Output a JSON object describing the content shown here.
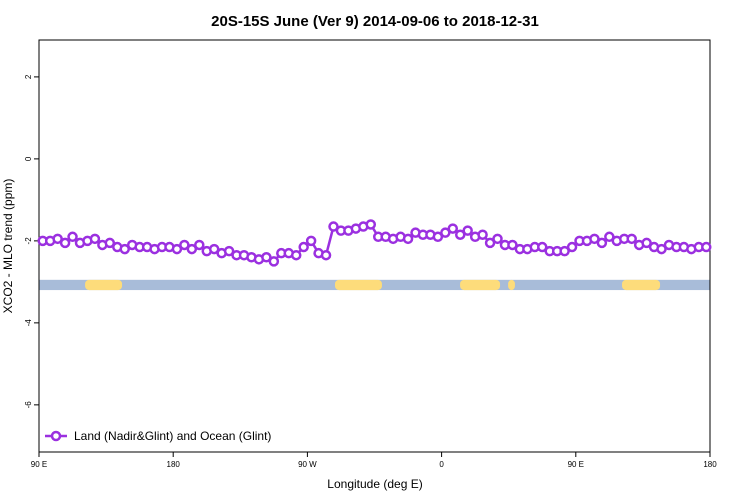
{
  "chart_data": {
    "type": "line",
    "title": "20S-15S June (Ver 9)   2014-09-06 to 2018-12-31",
    "xlabel": "Longitude (deg E)",
    "ylabel": "XCO2 - MLO trend (ppm)",
    "xlim": [
      90,
      540
    ],
    "xticks": [
      {
        "value": 90,
        "label": "90 E"
      },
      180,
      {
        "value": 270,
        "label": "90 W"
      },
      {
        "value": 360,
        "label": "0"
      },
      {
        "value": 450,
        "label": "90 E"
      },
      {
        "value": 540,
        "label": "180"
      }
    ],
    "ylim": [
      -7.15,
      2.9
    ],
    "yticks": [
      -6,
      -4,
      -2,
      0,
      2
    ],
    "legend": "lower left",
    "x": [
      92.5,
      97.5,
      102.5,
      107.5,
      112.5,
      117.5,
      122.5,
      127.5,
      132.5,
      137.5,
      142.5,
      147.5,
      152.5,
      157.5,
      162.5,
      167.5,
      172.5,
      177.5,
      182.5,
      187.5,
      192.5,
      197.5,
      202.5,
      207.5,
      212.5,
      217.5,
      222.5,
      227.5,
      232.5,
      237.5,
      242.5,
      247.5,
      252.5,
      257.5,
      262.5,
      267.5,
      272.5,
      277.5,
      282.5,
      287.5,
      292.5,
      297.5,
      302.5,
      307.5,
      312.5,
      317.5,
      322.5,
      327.5,
      332.5,
      337.5,
      342.5,
      347.5,
      352.5,
      357.5,
      362.5,
      367.5,
      372.5,
      377.5,
      382.5,
      387.5,
      392.5,
      397.5,
      402.5,
      407.5,
      412.5,
      417.5,
      422.5,
      427.5,
      432.5,
      437.5,
      442.5,
      447.5,
      452.5,
      457.5,
      462.5,
      467.5,
      472.5,
      477.5,
      482.5,
      487.5,
      492.5,
      497.5,
      502.5,
      507.5,
      512.5,
      517.5,
      522.5,
      527.5,
      532.5,
      537.5
    ],
    "series": [
      {
        "name": "Land (Nadir&Glint) and Ocean (Glint)",
        "color": "#9b30e0",
        "values": [
          -2.0,
          -2.0,
          -1.95,
          -2.05,
          -1.9,
          -2.05,
          -2.0,
          -1.95,
          -2.1,
          -2.05,
          -2.15,
          -2.2,
          -2.1,
          -2.15,
          -2.15,
          -2.2,
          -2.15,
          -2.15,
          -2.2,
          -2.1,
          -2.2,
          -2.1,
          -2.25,
          -2.2,
          -2.3,
          -2.25,
          -2.35,
          -2.35,
          -2.4,
          -2.45,
          -2.4,
          -2.5,
          -2.3,
          -2.3,
          -2.35,
          -2.15,
          -2.0,
          -2.3,
          -2.35,
          -1.65,
          -1.75,
          -1.75,
          -1.7,
          -1.65,
          -1.6,
          -1.9,
          -1.9,
          -1.95,
          -1.9,
          -1.95,
          -1.8,
          -1.85,
          -1.85,
          -1.9,
          -1.8,
          -1.7,
          -1.85,
          -1.75,
          -1.9,
          -1.85,
          -2.05,
          -1.95,
          -2.1,
          -2.1,
          -2.2,
          -2.2,
          -2.15,
          -2.15,
          -2.25,
          -2.25,
          -2.25,
          -2.15,
          -2.0,
          -2.0,
          -1.95,
          -2.05,
          -1.9,
          -2.0,
          -1.95,
          -1.95,
          -2.1,
          -2.05,
          -2.15,
          -2.2,
          -2.1,
          -2.15,
          -2.15,
          -2.2,
          -2.15,
          -2.15
        ]
      }
    ],
    "strip": {
      "ylim": [
        -3.2,
        -2.95
      ],
      "ocean_color": "#a8bcd9",
      "land_color": "#fddc7b",
      "land": [
        [
          120.9,
          145.7
        ],
        [
          288.5,
          320
        ],
        [
          372.4,
          399.2
        ],
        [
          404.6,
          409.2
        ],
        [
          481,
          506.5
        ]
      ]
    }
  }
}
